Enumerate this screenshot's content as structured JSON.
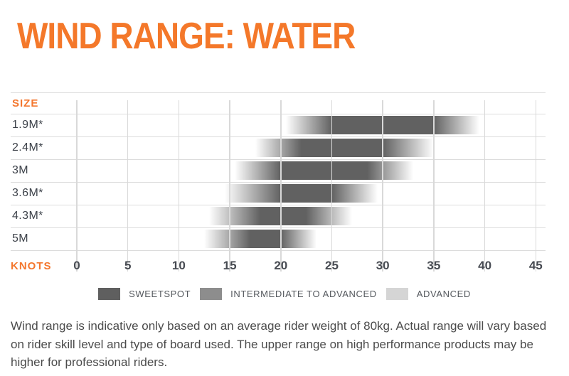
{
  "page": {
    "title": "WIND RANGE: WATER"
  },
  "chart": {
    "size_header": "SIZE",
    "axis_label": "KNOTS"
  },
  "chart_data": {
    "type": "bar",
    "subtype": "horizontal-gradient-range",
    "title": "WIND RANGE: WATER",
    "xlabel": "KNOTS",
    "xlim": [
      0,
      45
    ],
    "x_tick_step": 5,
    "x_tick_labels": [
      "0",
      "5",
      "10",
      "15",
      "20",
      "25",
      "30",
      "35",
      "40",
      "45"
    ],
    "grid": true,
    "legend_position": "bottom-center",
    "categories": [
      "1.9M*",
      "2.4M*",
      "3M",
      "3.6M*",
      "4.3M*",
      "5M"
    ],
    "series": [
      {
        "size": "1.9M*",
        "range_knots": [
          20.5,
          39.5
        ],
        "sweetspot_knots": [
          25,
          35
        ]
      },
      {
        "size": "2.4M*",
        "range_knots": [
          17.5,
          35
        ],
        "sweetspot_knots": [
          22,
          30
        ]
      },
      {
        "size": "3M",
        "range_knots": [
          15.5,
          33
        ],
        "sweetspot_knots": [
          20,
          28.5
        ]
      },
      {
        "size": "3.6M*",
        "range_knots": [
          14.5,
          29.5
        ],
        "sweetspot_knots": [
          20,
          25
        ]
      },
      {
        "size": "4.3M*",
        "range_knots": [
          13,
          27
        ],
        "sweetspot_knots": [
          18,
          22.5
        ]
      },
      {
        "size": "5M",
        "range_knots": [
          12.5,
          23.5
        ],
        "sweetspot_knots": [
          17,
          20
        ]
      }
    ]
  },
  "legend": {
    "items": [
      {
        "label": "SWEETSPOT",
        "color": "#5f5f5f"
      },
      {
        "label": "INTERMEDIATE TO ADVANCED",
        "color": "#8d8d8d"
      },
      {
        "label": "ADVANCED",
        "color": "#d5d5d5"
      }
    ]
  },
  "footer": {
    "text": "Wind range is indicative only based on an average rider weight of 80kg. Actual range will vary based on rider skill level and type of board used. The upper range on high performance products may be higher for professional riders."
  },
  "colors": {
    "accent_orange": "#f4782a",
    "bar_dark": "#616161",
    "grid_line": "#d9d9d9",
    "row_label_text": "#3d424a",
    "axis_text": "#474b52",
    "legend_text": "#55595e",
    "footer_text": "#4b4b4b"
  }
}
